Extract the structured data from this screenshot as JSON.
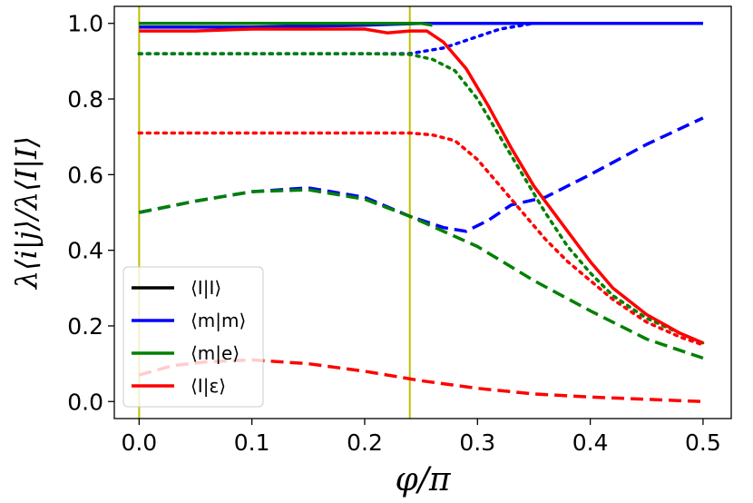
{
  "chart_data": {
    "type": "line",
    "xlabel": "φ/π",
    "ylabel": "λ⟨i|j⟩/λ⟨I|I⟩",
    "xlim": [
      -0.022,
      0.525
    ],
    "ylim": [
      -0.045,
      1.045
    ],
    "xticks": [
      0.0,
      0.1,
      0.2,
      0.3,
      0.4,
      0.5
    ],
    "xtick_labels": [
      "0.0",
      "0.1",
      "0.2",
      "0.3",
      "0.4",
      "0.5"
    ],
    "yticks": [
      0.0,
      0.2,
      0.4,
      0.6,
      0.8,
      1.0
    ],
    "ytick_labels": [
      "0.0",
      "0.2",
      "0.4",
      "0.6",
      "0.8",
      "1.0"
    ],
    "grid": false,
    "legend_position": "lower-left",
    "vertical_lines": {
      "x": [
        0.0,
        0.24
      ],
      "color": "#bfbf00"
    },
    "legend": [
      {
        "label": "⟨I|I⟩",
        "color": "#000000"
      },
      {
        "label": "⟨m|m⟩",
        "color": "#0000ff"
      },
      {
        "label": "⟨m|e⟩",
        "color": "#008000"
      },
      {
        "label": "⟨I|ε⟩",
        "color": "#ff0000"
      }
    ],
    "series": [
      {
        "color": "#000000",
        "style": "solid",
        "x": [
          0.0,
          0.5
        ],
        "y": [
          1.0,
          1.0
        ]
      },
      {
        "color": "#0000ff",
        "style": "solid",
        "x": [
          0.0,
          0.1,
          0.2,
          0.25,
          0.3,
          0.5
        ],
        "y": [
          0.99,
          0.99,
          0.995,
          1.0,
          1.0,
          1.0
        ]
      },
      {
        "color": "#0000ff",
        "style": "dotted",
        "x": [
          0.0,
          0.1,
          0.2,
          0.24,
          0.27,
          0.3,
          0.32,
          0.34,
          0.35,
          0.4,
          0.5
        ],
        "y": [
          0.92,
          0.92,
          0.92,
          0.92,
          0.935,
          0.965,
          0.985,
          0.995,
          1.0,
          1.0,
          1.0
        ]
      },
      {
        "color": "#0000ff",
        "style": "dashed",
        "x": [
          0.0,
          0.05,
          0.1,
          0.15,
          0.2,
          0.24,
          0.27,
          0.29,
          0.31,
          0.33,
          0.36,
          0.4,
          0.45,
          0.5
        ],
        "y": [
          0.5,
          0.53,
          0.555,
          0.565,
          0.54,
          0.49,
          0.46,
          0.45,
          0.48,
          0.52,
          0.54,
          0.6,
          0.68,
          0.75
        ]
      },
      {
        "color": "#008000",
        "style": "solid",
        "x": [
          0.0,
          0.1,
          0.2,
          0.24,
          0.25,
          0.26
        ],
        "y": [
          1.0,
          1.0,
          1.0,
          1.0,
          1.0,
          0.995
        ]
      },
      {
        "color": "#008000",
        "style": "dotted",
        "x": [
          0.0,
          0.1,
          0.2,
          0.24,
          0.26,
          0.28,
          0.3,
          0.32,
          0.34,
          0.36,
          0.38,
          0.4,
          0.42,
          0.45,
          0.48,
          0.5
        ],
        "y": [
          0.92,
          0.92,
          0.92,
          0.918,
          0.905,
          0.875,
          0.8,
          0.7,
          0.6,
          0.5,
          0.41,
          0.34,
          0.28,
          0.22,
          0.18,
          0.155
        ]
      },
      {
        "color": "#008000",
        "style": "dashed",
        "x": [
          0.0,
          0.05,
          0.1,
          0.15,
          0.2,
          0.24,
          0.3,
          0.35,
          0.4,
          0.45,
          0.5
        ],
        "y": [
          0.5,
          0.53,
          0.555,
          0.56,
          0.535,
          0.49,
          0.41,
          0.32,
          0.24,
          0.165,
          0.115
        ]
      },
      {
        "color": "#ff0000",
        "style": "solid",
        "x": [
          0.0,
          0.05,
          0.1,
          0.15,
          0.2,
          0.22,
          0.24,
          0.255,
          0.27,
          0.29,
          0.31,
          0.33,
          0.35,
          0.38,
          0.4,
          0.42,
          0.45,
          0.48,
          0.5
        ],
        "y": [
          0.98,
          0.98,
          0.985,
          0.985,
          0.985,
          0.975,
          0.98,
          0.98,
          0.95,
          0.88,
          0.78,
          0.67,
          0.57,
          0.45,
          0.37,
          0.3,
          0.23,
          0.18,
          0.155
        ]
      },
      {
        "color": "#ff0000",
        "style": "dotted",
        "x": [
          0.0,
          0.1,
          0.2,
          0.24,
          0.26,
          0.28,
          0.3,
          0.32,
          0.34,
          0.36,
          0.38,
          0.4,
          0.42,
          0.45,
          0.48,
          0.5
        ],
        "y": [
          0.71,
          0.71,
          0.71,
          0.71,
          0.705,
          0.69,
          0.64,
          0.57,
          0.5,
          0.43,
          0.37,
          0.32,
          0.27,
          0.21,
          0.17,
          0.15
        ]
      },
      {
        "color": "#ff0000",
        "style": "dashed",
        "x": [
          0.0,
          0.03,
          0.06,
          0.1,
          0.15,
          0.2,
          0.25,
          0.3,
          0.35,
          0.4,
          0.45,
          0.5
        ],
        "y": [
          0.07,
          0.095,
          0.105,
          0.11,
          0.1,
          0.08,
          0.055,
          0.035,
          0.02,
          0.012,
          0.006,
          0.0
        ]
      }
    ]
  }
}
